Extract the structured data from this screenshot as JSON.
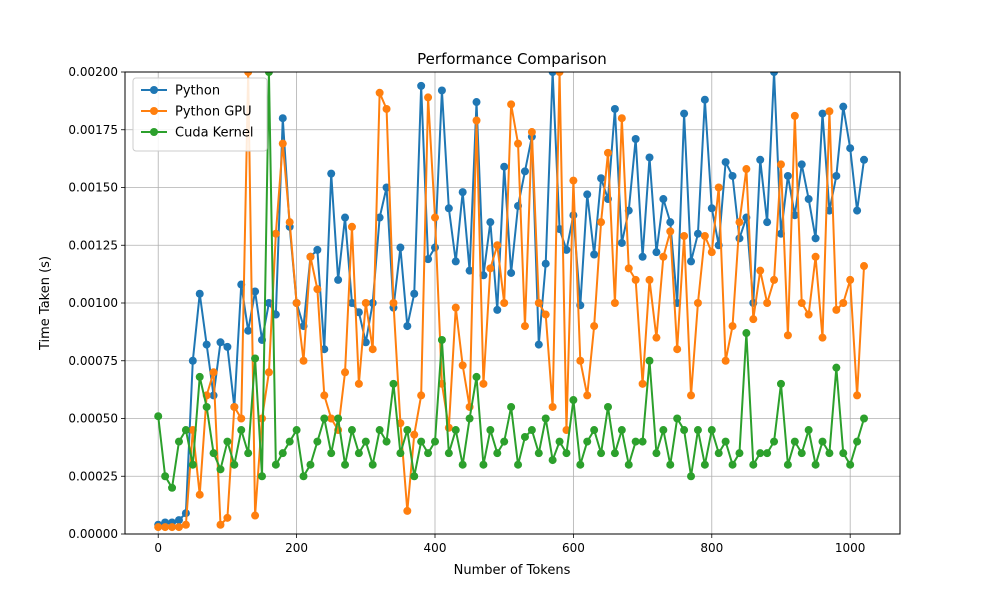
{
  "chart_data": {
    "type": "line",
    "title": "Performance Comparison",
    "xlabel": "Number of Tokens",
    "ylabel": "Time Taken (s)",
    "xlim": [
      -48,
      1072
    ],
    "ylim": [
      0,
      0.002
    ],
    "xticks": [
      0,
      200,
      400,
      600,
      800,
      1000
    ],
    "xtick_labels": [
      "0",
      "200",
      "400",
      "600",
      "800",
      "1000"
    ],
    "yticks": [
      0,
      0.00025,
      0.0005,
      0.00075,
      0.001,
      0.00125,
      0.0015,
      0.00175,
      0.002
    ],
    "ytick_labels": [
      "0.00000",
      "0.00025",
      "0.00050",
      "0.00075",
      "0.00100",
      "0.00125",
      "0.00150",
      "0.00175",
      "0.00200"
    ],
    "grid": true,
    "legend_position": "top-left",
    "series": [
      {
        "name": "Python",
        "color": "#1f77b4",
        "x": [
          0,
          10,
          20,
          30,
          40,
          50,
          60,
          70,
          80,
          90,
          100,
          110,
          120,
          130,
          140,
          150,
          160,
          170,
          180,
          190,
          200,
          210,
          220,
          230,
          240,
          250,
          260,
          270,
          280,
          290,
          300,
          310,
          320,
          330,
          340,
          350,
          360,
          370,
          380,
          390,
          400,
          410,
          420,
          430,
          440,
          450,
          460,
          470,
          480,
          490,
          500,
          510,
          520,
          530,
          540,
          550,
          560,
          570,
          580,
          590,
          600,
          610,
          620,
          630,
          640,
          650,
          660,
          670,
          680,
          690,
          700,
          710,
          720,
          730,
          740,
          750,
          760,
          770,
          780,
          790,
          800,
          810,
          820,
          830,
          840,
          850,
          860,
          870,
          880,
          890,
          900,
          910,
          920,
          930,
          940,
          950,
          960,
          970,
          980,
          990,
          1000,
          1010,
          1020
        ],
        "y": [
          4e-05,
          5e-05,
          5e-05,
          6e-05,
          9e-05,
          0.00075,
          0.00104,
          0.00082,
          0.0006,
          0.00083,
          0.00081,
          0.00055,
          0.00108,
          0.00088,
          0.00105,
          0.00084,
          0.001,
          0.00095,
          0.0018,
          0.00133,
          0.001,
          0.0009,
          0.0012,
          0.00123,
          0.0008,
          0.00156,
          0.0011,
          0.00137,
          0.001,
          0.00096,
          0.00083,
          0.001,
          0.00137,
          0.0015,
          0.00098,
          0.00124,
          0.0009,
          0.00104,
          0.00194,
          0.00119,
          0.00124,
          0.00192,
          0.00141,
          0.00118,
          0.00148,
          0.00114,
          0.00187,
          0.00112,
          0.00135,
          0.00097,
          0.00159,
          0.00113,
          0.00142,
          0.00157,
          0.00172,
          0.00082,
          0.00117,
          0.002,
          0.00132,
          0.00123,
          0.00138,
          0.00099,
          0.00147,
          0.00121,
          0.00154,
          0.00145,
          0.00184,
          0.00126,
          0.0014,
          0.00171,
          0.0012,
          0.00163,
          0.00122,
          0.00145,
          0.00135,
          0.001,
          0.00182,
          0.00118,
          0.0013,
          0.00188,
          0.00141,
          0.00125,
          0.00161,
          0.00155,
          0.00128,
          0.00137,
          0.001,
          0.00162,
          0.00135,
          0.002,
          0.0013,
          0.00155,
          0.00138,
          0.0016,
          0.00145,
          0.00128,
          0.00182,
          0.0014,
          0.00155,
          0.00185,
          0.00167,
          0.0014,
          0.00162
        ]
      },
      {
        "name": "Python GPU",
        "color": "#ff7f0e",
        "x": [
          0,
          10,
          20,
          30,
          40,
          50,
          60,
          70,
          80,
          90,
          100,
          110,
          120,
          130,
          140,
          150,
          160,
          170,
          180,
          190,
          200,
          210,
          220,
          230,
          240,
          250,
          260,
          270,
          280,
          290,
          300,
          310,
          320,
          330,
          340,
          350,
          360,
          370,
          380,
          390,
          400,
          410,
          420,
          430,
          440,
          450,
          460,
          470,
          480,
          490,
          500,
          510,
          520,
          530,
          540,
          550,
          560,
          570,
          580,
          590,
          600,
          610,
          620,
          630,
          640,
          650,
          660,
          670,
          680,
          690,
          700,
          710,
          720,
          730,
          740,
          750,
          760,
          770,
          780,
          790,
          800,
          810,
          820,
          830,
          840,
          850,
          860,
          870,
          880,
          890,
          900,
          910,
          920,
          930,
          940,
          950,
          960,
          970,
          980,
          990,
          1000,
          1010,
          1020
        ],
        "y": [
          3e-05,
          3e-05,
          3e-05,
          3e-05,
          4e-05,
          0.00045,
          0.00017,
          0.0006,
          0.0007,
          4e-05,
          7e-05,
          0.00055,
          0.0005,
          0.002,
          8e-05,
          0.0005,
          0.0007,
          0.0013,
          0.00169,
          0.00135,
          0.001,
          0.00075,
          0.0012,
          0.00106,
          0.0006,
          0.0005,
          0.00045,
          0.0007,
          0.00133,
          0.00065,
          0.001,
          0.0008,
          0.00191,
          0.00184,
          0.001,
          0.00048,
          0.0001,
          0.00043,
          0.0006,
          0.00189,
          0.00137,
          0.00065,
          0.00046,
          0.00098,
          0.00073,
          0.00055,
          0.00179,
          0.00065,
          0.00115,
          0.00125,
          0.001,
          0.00186,
          0.00169,
          0.0009,
          0.00174,
          0.001,
          0.00095,
          0.00055,
          0.002,
          0.00045,
          0.00153,
          0.00075,
          0.0006,
          0.0009,
          0.00135,
          0.00165,
          0.001,
          0.0018,
          0.00115,
          0.0011,
          0.00065,
          0.0011,
          0.00085,
          0.0012,
          0.00131,
          0.0008,
          0.00129,
          0.0006,
          0.001,
          0.00129,
          0.00122,
          0.0015,
          0.00075,
          0.0009,
          0.00135,
          0.00158,
          0.00093,
          0.00114,
          0.001,
          0.0011,
          0.0016,
          0.00086,
          0.00181,
          0.001,
          0.00095,
          0.0012,
          0.00085,
          0.00183,
          0.00097,
          0.001,
          0.0011,
          0.0006,
          0.00116
        ]
      },
      {
        "name": "Cuda Kernel",
        "color": "#2ca02c",
        "x": [
          0,
          10,
          20,
          30,
          40,
          50,
          60,
          70,
          80,
          90,
          100,
          110,
          120,
          130,
          140,
          150,
          160,
          170,
          180,
          190,
          200,
          210,
          220,
          230,
          240,
          250,
          260,
          270,
          280,
          290,
          300,
          310,
          320,
          330,
          340,
          350,
          360,
          370,
          380,
          390,
          400,
          410,
          420,
          430,
          440,
          450,
          460,
          470,
          480,
          490,
          500,
          510,
          520,
          530,
          540,
          550,
          560,
          570,
          580,
          590,
          600,
          610,
          620,
          630,
          640,
          650,
          660,
          670,
          680,
          690,
          700,
          710,
          720,
          730,
          740,
          750,
          760,
          770,
          780,
          790,
          800,
          810,
          820,
          830,
          840,
          850,
          860,
          870,
          880,
          890,
          900,
          910,
          920,
          930,
          940,
          950,
          960,
          970,
          980,
          990,
          1000,
          1010,
          1020
        ],
        "y": [
          0.00051,
          0.00025,
          0.0002,
          0.0004,
          0.00045,
          0.0003,
          0.00068,
          0.00055,
          0.00035,
          0.00028,
          0.0004,
          0.0003,
          0.00045,
          0.00035,
          0.00076,
          0.00025,
          0.002,
          0.0003,
          0.00035,
          0.0004,
          0.00045,
          0.00025,
          0.0003,
          0.0004,
          0.0005,
          0.00035,
          0.0005,
          0.0003,
          0.00045,
          0.00035,
          0.0004,
          0.0003,
          0.00045,
          0.0004,
          0.00065,
          0.00035,
          0.00045,
          0.00025,
          0.0004,
          0.00035,
          0.0004,
          0.00084,
          0.00035,
          0.00045,
          0.0003,
          0.0005,
          0.00068,
          0.0003,
          0.00045,
          0.00035,
          0.0004,
          0.00055,
          0.0003,
          0.00042,
          0.00045,
          0.00035,
          0.0005,
          0.00032,
          0.0004,
          0.00035,
          0.00058,
          0.0003,
          0.0004,
          0.00045,
          0.00035,
          0.00055,
          0.00035,
          0.00045,
          0.0003,
          0.0004,
          0.0004,
          0.00075,
          0.00035,
          0.00045,
          0.0003,
          0.0005,
          0.00045,
          0.00025,
          0.00045,
          0.0003,
          0.00045,
          0.00035,
          0.0004,
          0.0003,
          0.00035,
          0.00087,
          0.0003,
          0.00035,
          0.00035,
          0.0004,
          0.00065,
          0.0003,
          0.0004,
          0.00035,
          0.00045,
          0.0003,
          0.0004,
          0.00035,
          0.00072,
          0.00035,
          0.0003,
          0.0004,
          0.0005
        ]
      }
    ]
  }
}
